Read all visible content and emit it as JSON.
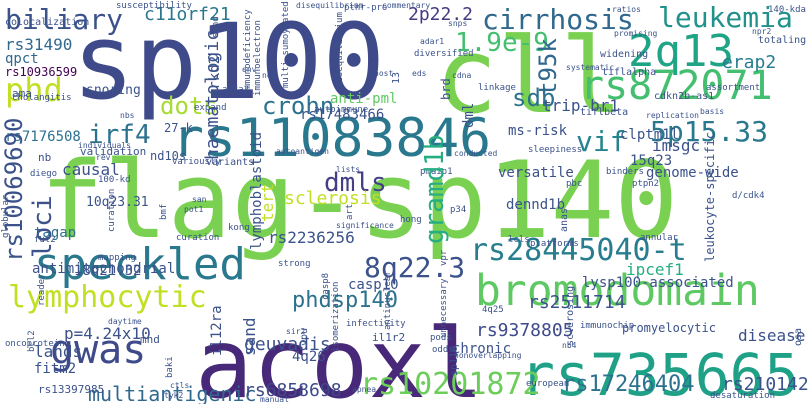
{
  "cloud": {
    "words": [
      {
        "text": "flag-sp140",
        "color": "#7ad151"
      },
      {
        "text": "sp100",
        "color": "#3e4a89"
      },
      {
        "text": "cll",
        "color": "#7ad151"
      },
      {
        "text": "acoxl",
        "color": "#482878"
      },
      {
        "text": "rs11083846",
        "color": "#2a788e"
      },
      {
        "text": "rs735665",
        "color": "#1fa187"
      },
      {
        "text": "bromodomain",
        "color": "#5ec962"
      },
      {
        "text": "speckled",
        "color": "#2a788e"
      },
      {
        "text": "gwas",
        "color": "#3e4a89"
      },
      {
        "text": "2q13",
        "color": "#20a486"
      },
      {
        "text": "rs872071",
        "color": "#44bf70"
      },
      {
        "text": "lymphocytic",
        "color": "#c2df23"
      },
      {
        "text": "rs28445040-t",
        "color": "#287d8e"
      },
      {
        "text": "cirrhosis",
        "color": "#31688e"
      },
      {
        "text": "leukemia",
        "color": "#21918c"
      },
      {
        "text": "biliary",
        "color": "#3b528b"
      },
      {
        "text": "phd",
        "color": "#c2df23"
      },
      {
        "text": "1.9e-9",
        "color": "#44bf70"
      },
      {
        "text": "5p15.33",
        "color": "#2a788e"
      },
      {
        "text": "8q22.3",
        "color": "#3b528b"
      },
      {
        "text": "gramd1b",
        "color": "#26ad81"
      },
      {
        "text": "phdsp140",
        "color": "#2c728e"
      },
      {
        "text": "crohn",
        "color": "#2c728e"
      },
      {
        "text": "dots",
        "color": "#a8db34"
      },
      {
        "text": "vif",
        "color": "#25848e"
      },
      {
        "text": "dmls",
        "color": "#433e85"
      },
      {
        "text": "sdb",
        "color": "#2c728e"
      },
      {
        "text": "t95k",
        "color": "#31688e"
      },
      {
        "text": "loci",
        "color": "#3b528b"
      },
      {
        "text": "irf4",
        "color": "#2c728e"
      },
      {
        "text": "rs10201872",
        "color": "#6ccd5a"
      },
      {
        "text": "rs17246404",
        "color": "#2c728e"
      },
      {
        "text": "multiantigenic",
        "color": "#31688e"
      },
      {
        "text": "rs10069690",
        "color": "#3b528b"
      },
      {
        "text": "c11orf21",
        "color": "#2a788e"
      },
      {
        "text": "rs31490",
        "color": "#31688e"
      },
      {
        "text": "qpct",
        "color": "#31688e"
      },
      {
        "text": "rs10936599",
        "color": "#440154"
      },
      {
        "text": "haematologic",
        "color": "#3b528b"
      },
      {
        "text": "2p22.2",
        "color": "#443a83"
      },
      {
        "text": "erap2",
        "color": "#287d8e"
      },
      {
        "text": "rs210142",
        "color": "#3b528b"
      },
      {
        "text": "rs6858698",
        "color": "#3e4a89"
      },
      {
        "text": "rs9378805",
        "color": "#3e4a89"
      },
      {
        "text": "rs2511714",
        "color": "#3b528b"
      },
      {
        "text": "rs2236256",
        "color": "#3b528b"
      },
      {
        "text": "rs17483466",
        "color": "#3b528b"
      },
      {
        "text": "rs7176508",
        "color": "#2c728e"
      },
      {
        "text": "rs13397985",
        "color": "#3b528b"
      },
      {
        "text": "ipcef1",
        "color": "#26ad81"
      },
      {
        "text": "geuvadis",
        "color": "#3b528b"
      },
      {
        "text": "imsgc",
        "color": "#3b528b"
      },
      {
        "text": "tert",
        "color": "#c2df23"
      },
      {
        "text": "odf1",
        "color": "#3b528b"
      },
      {
        "text": "lands",
        "color": "#3b528b"
      },
      {
        "text": "fitm2",
        "color": "#3b528b"
      },
      {
        "text": "4q26",
        "color": "#3b528b"
      },
      {
        "text": "chronic",
        "color": "#3b528b"
      },
      {
        "text": "causal",
        "color": "#2c728e"
      },
      {
        "text": "tagap",
        "color": "#3b528b"
      },
      {
        "text": "antimitochondrial",
        "color": "#3b528b"
      },
      {
        "text": "18q21.32",
        "color": "#3b528b"
      },
      {
        "text": "p=4.24x10",
        "color": "#c2df23"
      },
      {
        "text": "sclerosis",
        "color": "#5ec962"
      },
      {
        "text": "anti-pml",
        "color": "#3b528b"
      },
      {
        "text": "ms-risk",
        "color": "#3b528b"
      },
      {
        "text": "clptm1l",
        "color": "#3b528b"
      },
      {
        "text": "trip-br1",
        "color": "#3b528b"
      },
      {
        "text": "versatile",
        "color": "#3b528b"
      },
      {
        "text": "dennd1b",
        "color": "#3b528b"
      },
      {
        "text": "15q23",
        "color": "#3b528b"
      },
      {
        "text": "genome-wide",
        "color": "#3b528b"
      },
      {
        "text": "lysp100-associated",
        "color": "#3b528b"
      },
      {
        "text": "promyelocytic",
        "color": "#c2df23"
      },
      {
        "text": "casp10",
        "color": "#3b528b"
      },
      {
        "text": "nd10s",
        "color": "#3b528b"
      },
      {
        "text": "10q23.31",
        "color": "#3b528b"
      },
      {
        "text": "snoring",
        "color": "#3b528b"
      },
      {
        "text": "lymphoblastoid",
        "color": "#3b528b"
      },
      {
        "text": "27-k",
        "color": "#3b528b"
      },
      {
        "text": "prkd2",
        "color": "#3b528b"
      },
      {
        "text": "ama",
        "color": "#3b528b"
      },
      {
        "text": "validation",
        "color": "#3b528b"
      },
      {
        "text": "nb",
        "color": "#3b528b"
      },
      {
        "text": "mnd",
        "color": "#3b528b"
      },
      {
        "text": "il12ra",
        "color": "#3b528b"
      },
      {
        "text": "peptidylprolyl",
        "color": "#3b528b"
      },
      {
        "text": "il1r2",
        "color": "#3b528b"
      },
      {
        "text": "sand",
        "color": "#3b528b"
      },
      {
        "text": "colocalization",
        "color": "#3b528b"
      },
      {
        "text": "cholangitis",
        "color": "#3b528b"
      },
      {
        "text": "diego",
        "color": "#3b528b"
      },
      {
        "text": "fut2",
        "color": "#3b528b"
      },
      {
        "text": "dml",
        "color": "#3b528b"
      },
      {
        "text": "linkage",
        "color": "#3b528b"
      },
      {
        "text": "brd",
        "color": "#3b528b"
      },
      {
        "text": "sleepiness",
        "color": "#3b528b"
      },
      {
        "text": "tiflbeta",
        "color": "#3b528b"
      },
      {
        "text": "tiflalpha",
        "color": "#3b528b"
      },
      {
        "text": "widening",
        "color": "#3b528b"
      },
      {
        "text": "cdkn2b-as1",
        "color": "#3b528b"
      },
      {
        "text": "assortment",
        "color": "#3b528b"
      },
      {
        "text": "totaling",
        "color": "#3b528b"
      },
      {
        "text": "acta2",
        "color": "#3b528b"
      },
      {
        "text": "autoimmune",
        "color": "#3b528b"
      },
      {
        "text": "expand",
        "color": "#3b528b"
      },
      {
        "text": "variants",
        "color": "#3b528b"
      },
      {
        "text": "individuals",
        "color": "#3b528b"
      },
      {
        "text": "rev",
        "color": "#3b528b"
      },
      {
        "text": "lists",
        "color": "#3b528b"
      },
      {
        "text": "pmaip1",
        "color": "#3b528b"
      },
      {
        "text": "p34",
        "color": "#3b528b"
      },
      {
        "text": "hong",
        "color": "#3b528b"
      },
      {
        "text": "kong",
        "color": "#3b528b"
      },
      {
        "text": "lcls",
        "color": "#3b528b"
      },
      {
        "text": "binders",
        "color": "#3b528b"
      },
      {
        "text": "ptpn2",
        "color": "#3b528b"
      },
      {
        "text": "annular",
        "color": "#3b528b"
      },
      {
        "text": "platforms",
        "color": "#3b528b"
      },
      {
        "text": "leukocyte-specific",
        "color": "#3b528b"
      },
      {
        "text": "d/cdk4",
        "color": "#3b528b"
      },
      {
        "text": "pbc",
        "color": "#3b528b"
      },
      {
        "text": "anas",
        "color": "#3b528b"
      },
      {
        "text": "unnecessary",
        "color": "#3b528b"
      },
      {
        "text": "4q25",
        "color": "#3b528b"
      },
      {
        "text": "infectivity",
        "color": "#3b528b"
      },
      {
        "text": "isomerization",
        "color": "#3b528b"
      },
      {
        "text": "strong",
        "color": "#3b528b"
      },
      {
        "text": "antinuclear",
        "color": "#3b528b"
      },
      {
        "text": "casp8",
        "color": "#3b528b"
      },
      {
        "text": "pods",
        "color": "#3b528b"
      },
      {
        "text": "odds",
        "color": "#3b528b"
      },
      {
        "text": "nonoverlapping",
        "color": "#3b528b"
      },
      {
        "text": "sclerosing",
        "color": "#3b528b"
      },
      {
        "text": "immunochip",
        "color": "#3b528b"
      },
      {
        "text": "nb4",
        "color": "#3b528b"
      },
      {
        "text": "osa",
        "color": "#3b528b"
      },
      {
        "text": "disease",
        "color": "#3b528b"
      },
      {
        "text": "desaturation",
        "color": "#3b528b"
      },
      {
        "text": "european",
        "color": "#3b528b"
      },
      {
        "text": "apnea",
        "color": "#3b528b"
      },
      {
        "text": "sp110",
        "color": "#3b528b"
      },
      {
        "text": "vpu",
        "color": "#3b528b"
      },
      {
        "text": "sir2",
        "color": "#3b528b"
      },
      {
        "text": "baki",
        "color": "#3b528b"
      },
      {
        "text": "ctls",
        "color": "#3b528b"
      },
      {
        "text": "tyk2",
        "color": "#3b528b"
      },
      {
        "text": "manual",
        "color": "#3b528b"
      },
      {
        "text": "oncoprotein",
        "color": "#3b528b"
      },
      {
        "text": "bcl2",
        "color": "#3b528b"
      },
      {
        "text": "reader",
        "color": "#3b528b"
      },
      {
        "text": "globular",
        "color": "#3b528b"
      },
      {
        "text": "curation",
        "color": "#3b528b"
      },
      {
        "text": "daytime",
        "color": "#3b528b"
      },
      {
        "text": "mapping",
        "color": "#3b528b"
      },
      {
        "text": "100-kd",
        "color": "#3b528b"
      },
      {
        "text": "variously",
        "color": "#3b528b"
      },
      {
        "text": "bmf",
        "color": "#3b528b"
      },
      {
        "text": "pot1",
        "color": "#3b528b"
      },
      {
        "text": "san",
        "color": "#3b528b"
      },
      {
        "text": "autoantigen",
        "color": "#3b528b"
      },
      {
        "text": "significance",
        "color": "#3b528b"
      },
      {
        "text": "art",
        "color": "#3b528b"
      },
      {
        "text": "vpr",
        "color": "#3b528b"
      },
      {
        "text": "nbs",
        "color": "#3b528b"
      },
      {
        "text": "nef",
        "color": "#3b528b"
      },
      {
        "text": "env",
        "color": "#3b528b"
      },
      {
        "text": "host",
        "color": "#3b528b"
      },
      {
        "text": "13",
        "color": "#3b528b"
      },
      {
        "text": "eds",
        "color": "#3b528b"
      },
      {
        "text": "cdna",
        "color": "#3b528b"
      },
      {
        "text": "diversified",
        "color": "#3b528b"
      },
      {
        "text": "adar1",
        "color": "#3b528b"
      },
      {
        "text": "immunodeficiency",
        "color": "#3b528b"
      },
      {
        "text": "immunoelectron",
        "color": "#3b528b"
      },
      {
        "text": "multi-sumoylated",
        "color": "#3b528b"
      },
      {
        "text": "susceptibility",
        "color": "#3b528b"
      },
      {
        "text": "disequilibrium",
        "color": "#3b528b"
      },
      {
        "text": "pthr-pro",
        "color": "#3b528b"
      },
      {
        "text": "commentary",
        "color": "#3b528b"
      },
      {
        "text": "snps",
        "color": "#3b528b"
      },
      {
        "text": "ratios",
        "color": "#3b528b"
      },
      {
        "text": "promising",
        "color": "#3b528b"
      },
      {
        "text": "systematic",
        "color": "#3b528b"
      },
      {
        "text": "140-kda",
        "color": "#3b528b"
      },
      {
        "text": "npr2",
        "color": "#3b528b"
      },
      {
        "text": "basis",
        "color": "#3b528b"
      },
      {
        "text": "replication",
        "color": "#3b528b"
      },
      {
        "text": "conducted",
        "color": "#3b528b"
      },
      {
        "text": "bodies",
        "color": "#3b528b"
      },
      {
        "text": "phosphorylation",
        "color": "#3b528b"
      }
    ]
  }
}
